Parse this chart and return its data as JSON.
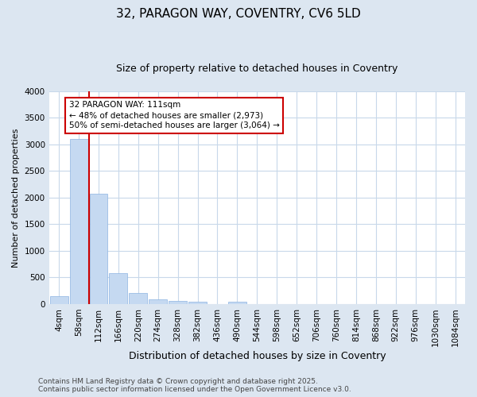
{
  "title": "32, PARAGON WAY, COVENTRY, CV6 5LD",
  "subtitle": "Size of property relative to detached houses in Coventry",
  "xlabel": "Distribution of detached houses by size in Coventry",
  "ylabel": "Number of detached properties",
  "footer_line1": "Contains HM Land Registry data © Crown copyright and database right 2025.",
  "footer_line2": "Contains public sector information licensed under the Open Government Licence v3.0.",
  "annotation_line1": "32 PARAGON WAY: 111sqm",
  "annotation_line2": "← 48% of detached houses are smaller (2,973)",
  "annotation_line3": "50% of semi-detached houses are larger (3,064) →",
  "bar_color": "#c5d9f1",
  "bar_edge_color": "#8db4e2",
  "red_line_color": "#cc0000",
  "red_line_x": 2.0,
  "ylim": [
    0,
    4000
  ],
  "yticks": [
    0,
    500,
    1000,
    1500,
    2000,
    2500,
    3000,
    3500,
    4000
  ],
  "bin_labels": [
    "4sqm",
    "58sqm",
    "112sqm",
    "166sqm",
    "220sqm",
    "274sqm",
    "328sqm",
    "382sqm",
    "436sqm",
    "490sqm",
    "544sqm",
    "598sqm",
    "652sqm",
    "706sqm",
    "760sqm",
    "814sqm",
    "868sqm",
    "922sqm",
    "976sqm",
    "1030sqm",
    "1084sqm"
  ],
  "bar_values": [
    150,
    3100,
    2080,
    580,
    210,
    90,
    65,
    45,
    0,
    40,
    0,
    0,
    0,
    0,
    0,
    0,
    0,
    0,
    0,
    0,
    0
  ],
  "figure_bg_color": "#dce6f1",
  "plot_bg_color": "#ffffff",
  "grid_color": "#c8d8ea",
  "annotation_box_color": "#ffffff",
  "annotation_box_edge_color": "#cc0000",
  "title_fontsize": 11,
  "subtitle_fontsize": 9,
  "xlabel_fontsize": 9,
  "ylabel_fontsize": 8,
  "tick_fontsize": 7.5,
  "footer_fontsize": 6.5,
  "annotation_fontsize": 7.5
}
